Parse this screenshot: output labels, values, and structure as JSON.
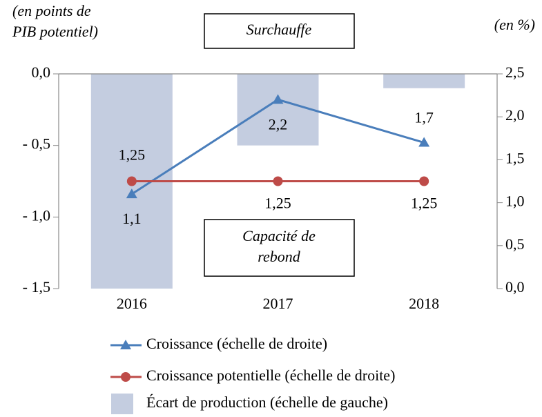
{
  "chart_data": {
    "type": "combo",
    "left_axis_label": [
      "(en points de",
      "PIB potentiel)"
    ],
    "right_axis_label": "(en %)",
    "annotations": [
      {
        "lines": [
          "Surchauffe"
        ]
      },
      {
        "lines": [
          "Capacité de",
          "rebond"
        ]
      }
    ],
    "categories": [
      "2016",
      "2017",
      "2018"
    ],
    "ylim": [
      -1.5,
      0
    ],
    "yticks": [
      {
        "value": 0,
        "label": "0,0"
      },
      {
        "value": -0.5,
        "label": "- 0,5"
      },
      {
        "value": -1,
        "label": "- 1,0"
      },
      {
        "value": -1.5,
        "label": "- 1,5"
      }
    ],
    "y2lim": [
      0,
      2.5
    ],
    "y2ticks": [
      {
        "value": 0,
        "label": "0,0"
      },
      {
        "value": 0.5,
        "label": "0,5"
      },
      {
        "value": 1,
        "label": "1,0"
      },
      {
        "value": 1.5,
        "label": "1,5"
      },
      {
        "value": 2,
        "label": "2,0"
      },
      {
        "value": 2.5,
        "label": "2,5"
      }
    ],
    "series": [
      {
        "name": "Croissance (échelle de droite)",
        "type": "line",
        "marker": "triangle",
        "color": "#4a7ebb",
        "axis": "y2",
        "values": [
          1.1,
          2.2,
          1.7
        ],
        "value_labels": [
          "1,1",
          "2,2",
          "1,7"
        ]
      },
      {
        "name": "Croissance potentielle (échelle de droite)",
        "type": "line",
        "marker": "circle",
        "color": "#be4b48",
        "axis": "y2",
        "values": [
          1.25,
          1.25,
          1.25
        ],
        "value_labels": [
          "1,25",
          "1,25",
          "1,25"
        ]
      },
      {
        "name": "Écart de production (échelle de gauche)",
        "type": "bar",
        "color": "#c4cde0",
        "values": [
          -1.5,
          -0.5,
          -0.1
        ]
      }
    ]
  }
}
